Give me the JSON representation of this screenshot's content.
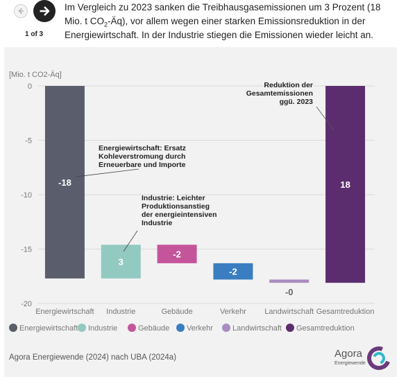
{
  "header": {
    "headline_pre": "Im Vergleich zu 2023 sanken die Treibhausgasemissionen um 3 Prozent (18 Mio. t CO",
    "headline_sub": "2",
    "headline_post": "-Äq), vor allem wegen einer starken Emissionsreduktion in der Energiewirtschaft. In der Industrie stiegen die Emissionen wieder leicht an.",
    "pager": "1 of 3",
    "prev_icon": "arrow-left-icon",
    "next_icon": "arrow-right-icon"
  },
  "chart_data": {
    "type": "bar",
    "subtype": "waterfall",
    "ylabel": "[Mio. t CO2-Äq]",
    "ylim": [
      -20,
      0
    ],
    "yticks": [
      0,
      -5,
      -10,
      -15,
      -20
    ],
    "ytick_labels": [
      "0",
      "-5",
      "-10",
      "-15",
      "-20"
    ],
    "grid": true,
    "legend_position": "bottom",
    "categories": [
      "Energiewirtschaft",
      "Industrie",
      "Gebäude",
      "Verkehr",
      "Landwirtschaft",
      "Gesamtreduktion"
    ],
    "bars": [
      {
        "category": "Energiewirtschaft",
        "start": 0,
        "end": -17.7,
        "label": "-18",
        "color": "#5a5d6b"
      },
      {
        "category": "Industrie",
        "start": -17.7,
        "end": -14.6,
        "label": "3",
        "color": "#92c9c0"
      },
      {
        "category": "Gebäude",
        "start": -14.6,
        "end": -16.3,
        "label": "-2",
        "color": "#c5559a"
      },
      {
        "category": "Verkehr",
        "start": -16.3,
        "end": -17.8,
        "label": "-2",
        "color": "#3a7ec1"
      },
      {
        "category": "Landwirtschaft",
        "start": -17.8,
        "end": -18.1,
        "label": "-0",
        "color": "#a98cc0"
      },
      {
        "category": "Gesamtreduktion",
        "start": 0,
        "end": -18.1,
        "label": "18",
        "color": "#5c2d6e"
      }
    ],
    "annotations": [
      {
        "lines": [
          "Energiewirtschaft: Ersatz",
          "Kohleverstromung durch",
          "Erneuerbare und Importe"
        ]
      },
      {
        "lines": [
          "Industrie: Leichter",
          "Produktionsanstieg",
          "der energieintensiven",
          "Industrie"
        ]
      },
      {
        "lines": [
          "Reduktion der",
          "Gesamtemissionen",
          "ggü. 2023"
        ]
      }
    ],
    "legend": [
      {
        "name": "Energiewirtschaft",
        "color": "#5a5d6b"
      },
      {
        "name": "Industrie",
        "color": "#92c9c0"
      },
      {
        "name": "Gebäude",
        "color": "#c5559a"
      },
      {
        "name": "Verkehr",
        "color": "#3a7ec1"
      },
      {
        "name": "Landwirtschaft",
        "color": "#a98cc0"
      },
      {
        "name": "Gesamtreduktion",
        "color": "#5c2d6e"
      }
    ]
  },
  "footer": {
    "source": "Agora Energiewende (2024) nach UBA (2024a)",
    "logo_name": "Agora",
    "logo_sub": "Energiewende",
    "logo_icon": "agora-logo-icon"
  }
}
